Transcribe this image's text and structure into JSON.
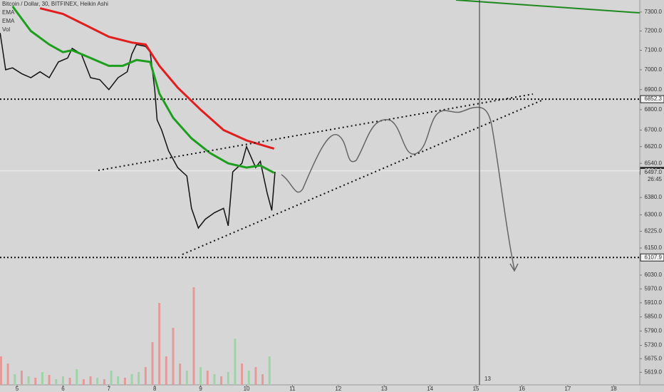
{
  "chart_data": [
    {
      "type": "line",
      "log_scale": true,
      "ylim": [
        5568,
        7364
      ],
      "yticks": [
        {
          "value": 7300,
          "label": "7300.0"
        },
        {
          "value": 7200,
          "label": "7200.0"
        },
        {
          "value": 7100,
          "label": "7100.0"
        },
        {
          "value": 7000,
          "label": "7000.0"
        },
        {
          "value": 6900,
          "label": "6900.0"
        },
        {
          "value": 6800,
          "label": "6800.0"
        },
        {
          "value": 6700,
          "label": "6700.0"
        },
        {
          "value": 6620,
          "label": "6620.0"
        },
        {
          "value": 6540,
          "label": "6540.0"
        },
        {
          "value": 6380,
          "label": "6380.0"
        },
        {
          "value": 6300,
          "label": "6300.0"
        },
        {
          "value": 6225,
          "label": "6225.0"
        },
        {
          "value": 6150,
          "label": "6150.0"
        },
        {
          "value": 6030,
          "label": "6030.0"
        },
        {
          "value": 5970,
          "label": "5970.0"
        },
        {
          "value": 5910,
          "label": "5910.0"
        },
        {
          "value": 5850,
          "label": "5850.0"
        },
        {
          "value": 5790,
          "label": "5790.0"
        },
        {
          "value": 5730,
          "label": "5730.0"
        },
        {
          "value": 5675,
          "label": "5675.0"
        },
        {
          "value": 5619,
          "label": "5619.0"
        }
      ],
      "xlim": [
        4.627,
        18.57
      ],
      "xticks": [
        5,
        6,
        7,
        8,
        9,
        10,
        11,
        12,
        13,
        14,
        15,
        16,
        17,
        18
      ],
      "series": [
        {
          "name": "Bitcoin / Dollar, 30, BITFINEX, Heikin Ashi",
          "color": "#111111",
          "x": [
            4.63,
            4.75,
            4.9,
            5.1,
            5.3,
            5.5,
            5.7,
            5.9,
            6.1,
            6.2,
            6.4,
            6.6,
            6.8,
            7.0,
            7.2,
            7.4,
            7.5,
            7.6,
            7.8,
            7.9,
            8.0,
            8.05,
            8.15,
            8.3,
            8.5,
            8.7,
            8.8,
            8.95,
            9.1,
            9.3,
            9.5,
            9.6,
            9.7,
            9.9,
            10.0,
            10.2,
            10.3,
            10.45,
            10.55,
            10.62
          ],
          "values": [
            7190,
            7000,
            7010,
            6980,
            6960,
            6990,
            6960,
            7040,
            7060,
            7110,
            7080,
            6960,
            6950,
            6900,
            6960,
            6990,
            7080,
            7130,
            7120,
            7090,
            6900,
            6750,
            6700,
            6600,
            6520,
            6480,
            6330,
            6240,
            6280,
            6310,
            6330,
            6250,
            6500,
            6540,
            6620,
            6520,
            6550,
            6400,
            6320,
            6500
          ]
        },
        {
          "name": "EMA",
          "color": "#1e9e1e",
          "x": [
            4.9,
            5.3,
            5.7,
            6.0,
            6.2,
            6.6,
            7.0,
            7.3,
            7.6,
            7.9,
            8.1,
            8.4,
            8.8,
            9.2,
            9.6,
            10.0,
            10.3,
            10.6
          ],
          "values": [
            7330,
            7200,
            7130,
            7090,
            7100,
            7060,
            7020,
            7020,
            7050,
            7040,
            6880,
            6760,
            6660,
            6590,
            6540,
            6520,
            6530,
            6495
          ]
        },
        {
          "name": "EMA",
          "color": "#e01e1e",
          "x": [
            5.5,
            6.0,
            6.5,
            7.0,
            7.5,
            7.8,
            8.1,
            8.5,
            9.0,
            9.5,
            10.0,
            10.6
          ],
          "values": [
            7320,
            7290,
            7230,
            7170,
            7140,
            7130,
            7020,
            6910,
            6800,
            6700,
            6650,
            6610
          ]
        }
      ],
      "levels": [
        6852.3,
        6107.9
      ],
      "last_price": 6504.4,
      "price_labels": [
        6852.3,
        6504.4,
        {
          "value": 6497,
          "label": "6497.0"
        },
        6107.9
      ],
      "countdown": "26:45",
      "crosshair_label": "13"
    },
    {
      "type": "bar",
      "title": "Vol",
      "ylim": [
        0,
        140
      ],
      "x": [
        4.65,
        4.8,
        4.95,
        5.1,
        5.25,
        5.4,
        5.55,
        5.7,
        5.85,
        6.0,
        6.15,
        6.3,
        6.45,
        6.6,
        6.75,
        6.9,
        7.05,
        7.2,
        7.35,
        7.5,
        7.65,
        7.8,
        7.95,
        8.1,
        8.25,
        8.4,
        8.55,
        8.7,
        8.85,
        9.0,
        9.15,
        9.3,
        9.45,
        9.6,
        9.75,
        9.9,
        10.05,
        10.2,
        10.35,
        10.5
      ],
      "values": [
        40,
        30,
        15,
        20,
        12,
        10,
        18,
        14,
        8,
        12,
        10,
        22,
        8,
        12,
        10,
        8,
        20,
        12,
        10,
        15,
        18,
        25,
        60,
        115,
        40,
        80,
        30,
        20,
        137,
        25,
        20,
        15,
        12,
        18,
        65,
        30,
        20,
        25,
        15,
        40
      ],
      "colors": [
        "#e59a9a",
        "#e59a9a",
        "#9fd4a8",
        "#e59a9a",
        "#9fd4a8",
        "#e59a9a",
        "#9fd4a8",
        "#e59a9a",
        "#9fd4a8",
        "#9fd4a8",
        "#e59a9a",
        "#9fd4a8",
        "#e59a9a",
        "#e59a9a",
        "#9fd4a8",
        "#e59a9a",
        "#9fd4a8",
        "#9fd4a8",
        "#e59a9a",
        "#9fd4a8",
        "#9fd4a8",
        "#e59a9a",
        "#e59a9a",
        "#e59a9a",
        "#e59a9a",
        "#e59a9a",
        "#e59a9a",
        "#9fd4a8",
        "#e59a9a",
        "#9fd4a8",
        "#e59a9a",
        "#9fd4a8",
        "#e59a9a",
        "#9fd4a8",
        "#9fd4a8",
        "#e59a9a",
        "#9fd4a8",
        "#e59a9a",
        "#e59a9a",
        "#9fd4a8"
      ]
    }
  ]
}
